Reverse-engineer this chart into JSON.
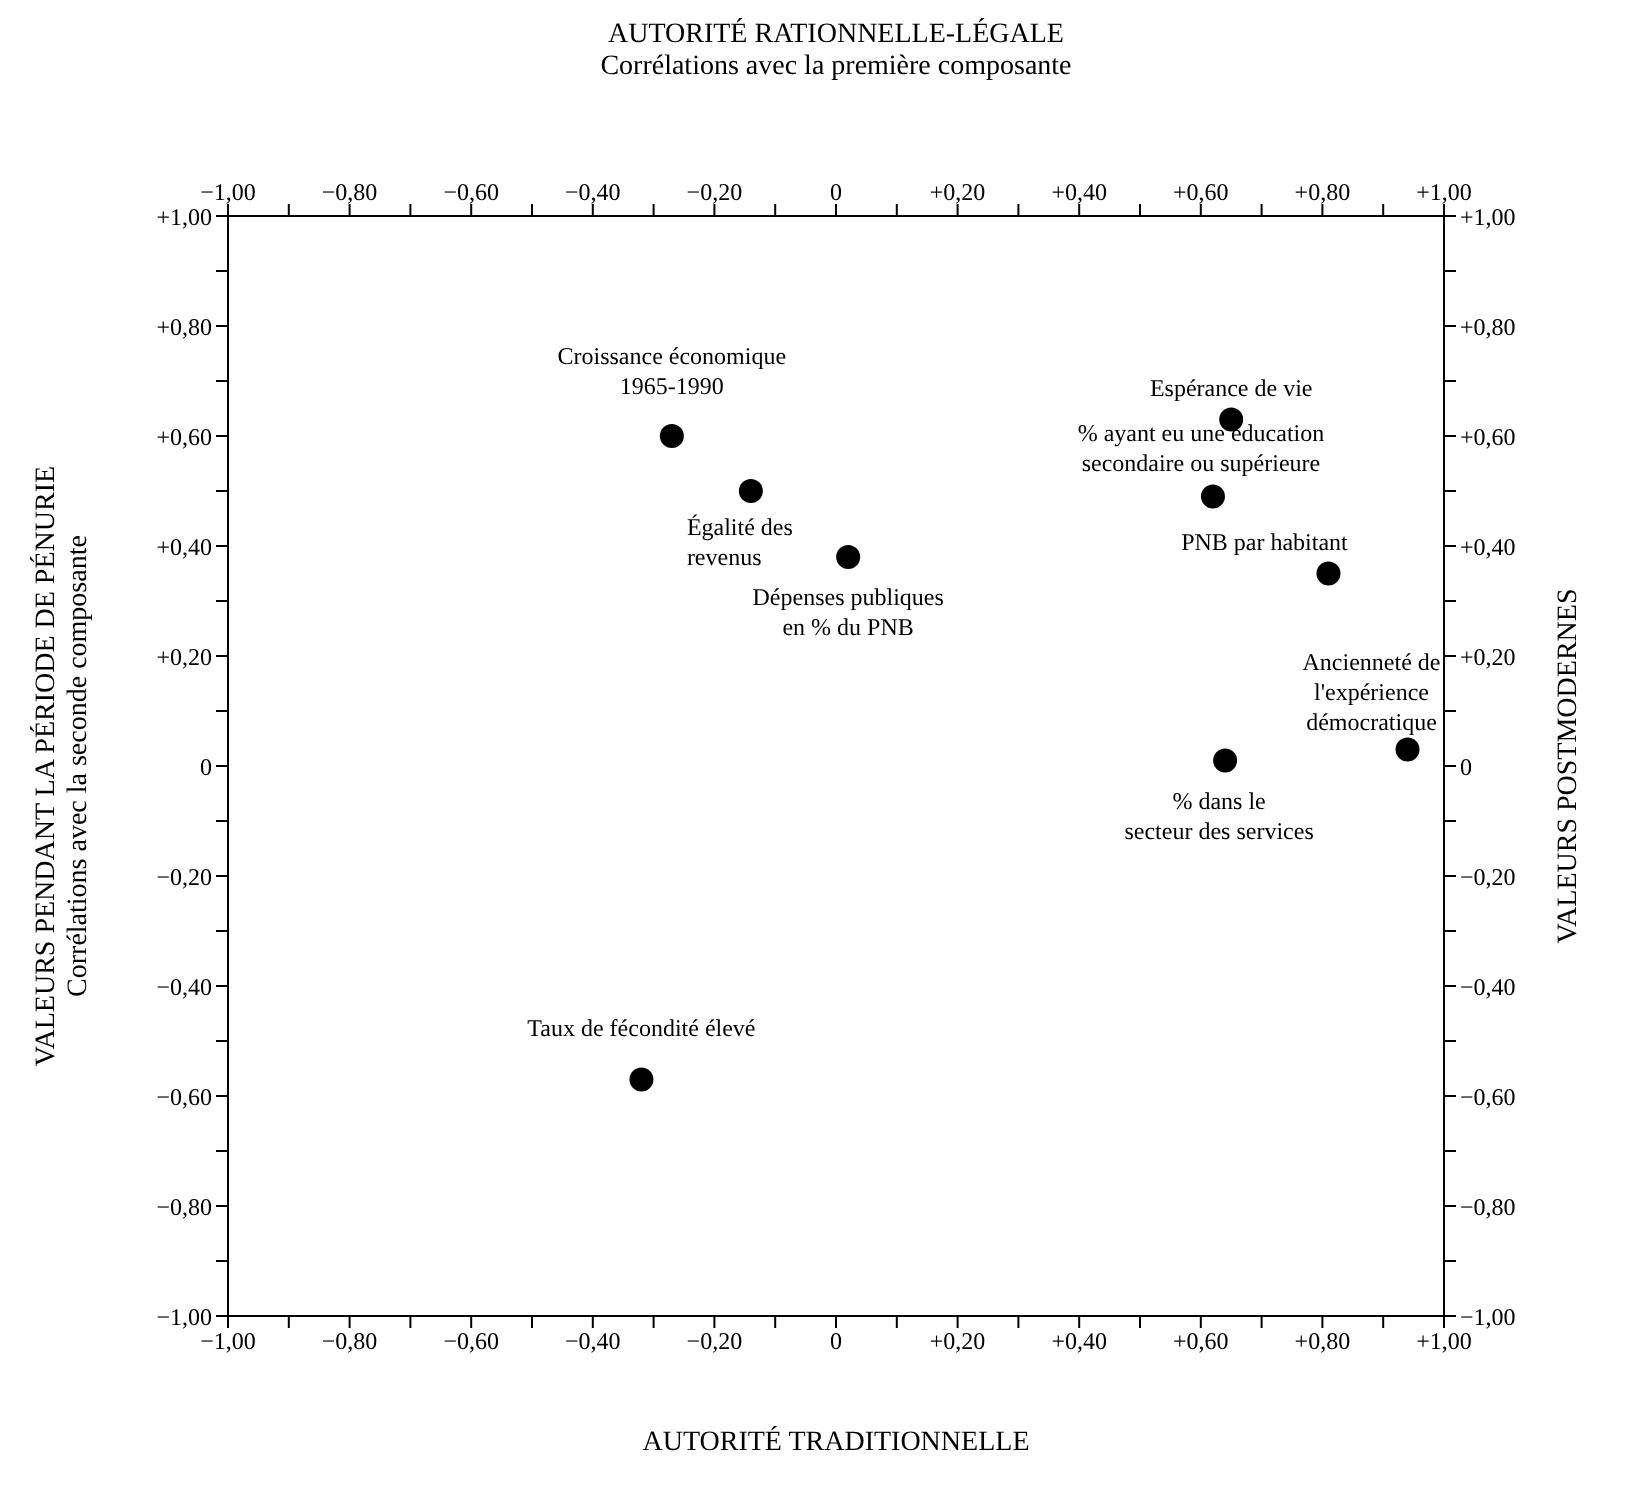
{
  "chart_data": {
    "type": "scatter",
    "xlabel": "AUTORITÉ TRADITIONNELLE",
    "x2label": "AUTORITÉ RATIONNELLE-LÉGALE\nCorrélations avec la première composante",
    "ylabel": "VALEURS PENDANT LA PÉRIODE DE PÉNURIE\nCorrélations avec la seconde composante",
    "y2label": "VALEURS POSTMODERNES",
    "x": [
      -0.27,
      -0.14,
      0.02,
      0.65,
      0.62,
      0.81,
      0.94,
      0.64,
      -0.32
    ],
    "series": [
      {
        "color": "#000000",
        "values": [
          0.6,
          0.5,
          0.38,
          0.63,
          0.49,
          0.35,
          0.03,
          0.01,
          -0.57
        ]
      }
    ],
    "marker": "circle",
    "annotations": [
      {
        "text": "Croissance économique\n1965-1990",
        "x": -0.27,
        "y": 0.6
      },
      {
        "text": "Égalité des\nrevenus",
        "x": -0.14,
        "y": 0.5
      },
      {
        "text": "Dépenses publiques\nen % du PNB",
        "x": 0.02,
        "y": 0.38
      },
      {
        "text": "Espérance de vie",
        "x": 0.65,
        "y": 0.63
      },
      {
        "text": "% ayant eu une éducation\nsecondaire ou supérieure",
        "x": 0.62,
        "y": 0.49
      },
      {
        "text": "PNB par habitant",
        "x": 0.81,
        "y": 0.35
      },
      {
        "text": "Ancienneté de\nl'expérience\ndémocratique",
        "x": 0.94,
        "y": 0.03
      },
      {
        "text": "% dans le\nsecteur des services",
        "x": 0.64,
        "y": 0.01
      },
      {
        "text": "Taux de fécondité élevé",
        "x": -0.32,
        "y": -0.57
      }
    ],
    "xlim": [
      -1,
      1
    ],
    "x2lim": [
      -1,
      1
    ],
    "ylim": [
      -1,
      1
    ],
    "y2lim": [
      -1,
      1
    ],
    "xticks": [
      {
        "value": -1,
        "label": "−1,00"
      },
      {
        "value": -0.9,
        "label": null
      },
      {
        "value": -0.8,
        "label": "−0,80"
      },
      {
        "value": -0.7,
        "label": null
      },
      {
        "value": -0.6,
        "label": "−0,60"
      },
      {
        "value": -0.5,
        "label": null
      },
      {
        "value": -0.4,
        "label": "−0,40"
      },
      {
        "value": -0.3,
        "label": null
      },
      {
        "value": -0.2,
        "label": "−0,20"
      },
      {
        "value": -0.1,
        "label": null
      },
      0,
      {
        "value": 0.1,
        "label": null
      },
      {
        "value": 0.2,
        "label": "+0,20"
      },
      {
        "value": 0.3,
        "label": null
      },
      {
        "value": 0.4,
        "label": "+0,40"
      },
      {
        "value": 0.5,
        "label": null
      },
      {
        "value": 0.6,
        "label": "+0,60"
      },
      {
        "value": 0.7,
        "label": null
      },
      {
        "value": 0.8,
        "label": "+0,80"
      },
      {
        "value": 0.9,
        "label": null
      },
      {
        "value": 1,
        "label": "+1,00"
      }
    ],
    "x2ticks": [
      {
        "value": -1,
        "label": "−1,00"
      },
      {
        "value": -0.9,
        "label": null
      },
      {
        "value": -0.8,
        "label": "−0,80"
      },
      {
        "value": -0.7,
        "label": null
      },
      {
        "value": -0.6,
        "label": "−0,60"
      },
      {
        "value": -0.5,
        "label": null
      },
      {
        "value": -0.4,
        "label": "−0,40"
      },
      {
        "value": -0.3,
        "label": null
      },
      {
        "value": -0.2,
        "label": "−0,20"
      },
      {
        "value": -0.1,
        "label": null
      },
      0,
      {
        "value": 0.1,
        "label": null
      },
      {
        "value": 0.2,
        "label": "+0,20"
      },
      {
        "value": 0.3,
        "label": null
      },
      {
        "value": 0.4,
        "label": "+0,40"
      },
      {
        "value": 0.5,
        "label": null
      },
      {
        "value": 0.6,
        "label": "+0,60"
      },
      {
        "value": 0.7,
        "label": null
      },
      {
        "value": 0.8,
        "label": "+0,80"
      },
      {
        "value": 0.9,
        "label": null
      },
      {
        "value": 1,
        "label": "+1,00"
      }
    ],
    "yticks": [
      {
        "value": -1,
        "label": "−1,00"
      },
      {
        "value": -0.9,
        "label": null
      },
      {
        "value": -0.8,
        "label": "−0,80"
      },
      {
        "value": -0.7,
        "label": null
      },
      {
        "value": -0.6,
        "label": "−0,60"
      },
      {
        "value": -0.5,
        "label": null
      },
      {
        "value": -0.4,
        "label": "−0,40"
      },
      {
        "value": -0.3,
        "label": null
      },
      {
        "value": -0.2,
        "label": "−0,20"
      },
      {
        "value": -0.1,
        "label": null
      },
      0,
      {
        "value": 0.1,
        "label": null
      },
      {
        "value": 0.2,
        "label": "+0,20"
      },
      {
        "value": 0.3,
        "label": null
      },
      {
        "value": 0.4,
        "label": "+0,40"
      },
      {
        "value": 0.5,
        "label": null
      },
      {
        "value": 0.6,
        "label": "+0,60"
      },
      {
        "value": 0.7,
        "label": null
      },
      {
        "value": 0.8,
        "label": "+0,80"
      },
      {
        "value": 0.9,
        "label": null
      },
      {
        "value": 1,
        "label": "+1,00"
      }
    ],
    "y2ticks": [
      {
        "value": -1,
        "label": "−1,00"
      },
      {
        "value": -0.9,
        "label": null
      },
      {
        "value": -0.8,
        "label": "−0,80"
      },
      {
        "value": -0.7,
        "label": null
      },
      {
        "value": -0.6,
        "label": "−0,60"
      },
      {
        "value": -0.5,
        "label": null
      },
      {
        "value": -0.4,
        "label": "−0,40"
      },
      {
        "value": -0.3,
        "label": null
      },
      {
        "value": -0.2,
        "label": "−0,20"
      },
      {
        "value": -0.1,
        "label": null
      },
      0,
      {
        "value": 0.1,
        "label": null
      },
      {
        "value": 0.2,
        "label": "+0,20"
      },
      {
        "value": 0.3,
        "label": null
      },
      {
        "value": 0.4,
        "label": "+0,40"
      },
      {
        "value": 0.5,
        "label": null
      },
      {
        "value": 0.6,
        "label": "+0,60"
      },
      {
        "value": 0.7,
        "label": null
      },
      {
        "value": 0.8,
        "label": "+0,80"
      },
      {
        "value": 0.9,
        "label": null
      },
      {
        "value": 1,
        "label": "+1,00"
      }
    ],
    "tick_labels": true
  }
}
